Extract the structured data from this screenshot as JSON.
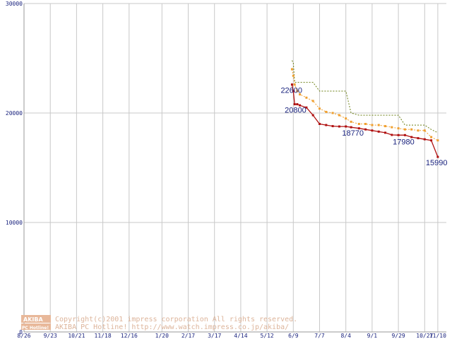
{
  "chart_data": {
    "type": "line",
    "title": "",
    "xlabel": "",
    "ylabel": "",
    "ylim": [
      0,
      30000
    ],
    "y_ticks": [
      "0",
      "10000",
      "20000",
      "30000"
    ],
    "grid": true,
    "x_ticks": [
      "8/26",
      "9/23",
      "10/21",
      "11/18",
      "12/16",
      "1/20",
      "2/17",
      "3/17",
      "4/14",
      "5/12",
      "6/9",
      "7/7",
      "8/4",
      "9/1",
      "9/29",
      "10/27",
      "11/10"
    ],
    "x_tick_weeks": [
      0,
      4,
      8,
      12,
      16,
      21,
      25,
      29,
      33,
      37,
      41,
      45,
      49,
      53,
      57,
      61,
      63
    ],
    "series": [
      {
        "name": "",
        "style": "dotted",
        "color": "#6b7f14",
        "weeks": [
          40.8,
          41,
          41.2,
          41.6,
          42,
          43,
          44,
          45,
          46,
          47,
          48,
          49,
          49.8,
          51,
          52,
          53,
          54,
          55,
          56,
          57,
          58,
          59,
          60,
          61,
          62,
          63
        ],
        "values": [
          24800,
          24600,
          22800,
          22800,
          22800,
          22800,
          22800,
          22000,
          22000,
          22000,
          22000,
          22000,
          20000,
          19800,
          19800,
          19800,
          19800,
          19800,
          19800,
          19800,
          18900,
          18900,
          18900,
          18900,
          18500,
          18200
        ]
      },
      {
        "name": "",
        "style": "dotted-markers",
        "color": "#f0a030",
        "weeks": [
          40.8,
          41,
          41.2,
          41.6,
          42,
          43,
          44,
          45,
          46,
          47,
          48,
          49,
          49.8,
          51,
          52,
          53,
          54,
          55,
          56,
          57,
          58,
          59,
          60,
          61,
          62,
          63
        ],
        "values": [
          24000,
          23400,
          22600,
          22000,
          21700,
          21400,
          21100,
          20400,
          20100,
          20000,
          19800,
          19500,
          19200,
          19000,
          19000,
          18900,
          18900,
          18800,
          18700,
          18600,
          18500,
          18500,
          18400,
          18400,
          17800,
          17500
        ]
      },
      {
        "name": "",
        "style": "solid-markers",
        "color": "#b01010",
        "weeks": [
          40.8,
          41,
          41.2,
          41.6,
          42,
          43,
          44,
          45,
          46,
          47,
          48,
          49,
          49.8,
          51,
          52,
          53,
          54,
          55,
          56,
          57,
          58,
          59,
          60,
          61,
          62,
          63
        ],
        "values": [
          22600,
          22000,
          20800,
          20800,
          20700,
          20500,
          19800,
          19000,
          18900,
          18800,
          18770,
          18770,
          18700,
          18600,
          18500,
          18400,
          18300,
          18200,
          18000,
          17980,
          17980,
          17800,
          17700,
          17600,
          17500,
          15990
        ]
      }
    ],
    "annotations": [
      {
        "text": "22600",
        "week": 40.8,
        "value": 22600,
        "dx": -16,
        "dy": 12
      },
      {
        "text": "20800",
        "week": 41.2,
        "value": 20800,
        "dx": -14,
        "dy": 12
      },
      {
        "text": "18770",
        "week": 48,
        "value": 18770,
        "dx": 4,
        "dy": 13
      },
      {
        "text": "17980",
        "week": 57,
        "value": 17980,
        "dx": -8,
        "dy": 13
      },
      {
        "text": "15990",
        "week": 63,
        "value": 15990,
        "dx": -17,
        "dy": 12
      }
    ]
  },
  "watermark": {
    "logo_top": "AKIBA",
    "logo_bottom": "PC Hotline!",
    "line1": "Copyright(c)2001 impress corporation All rights reserved.",
    "line2": "AKIBA PC Hotline!  http://www.watch.impress.co.jp/akiba/"
  }
}
